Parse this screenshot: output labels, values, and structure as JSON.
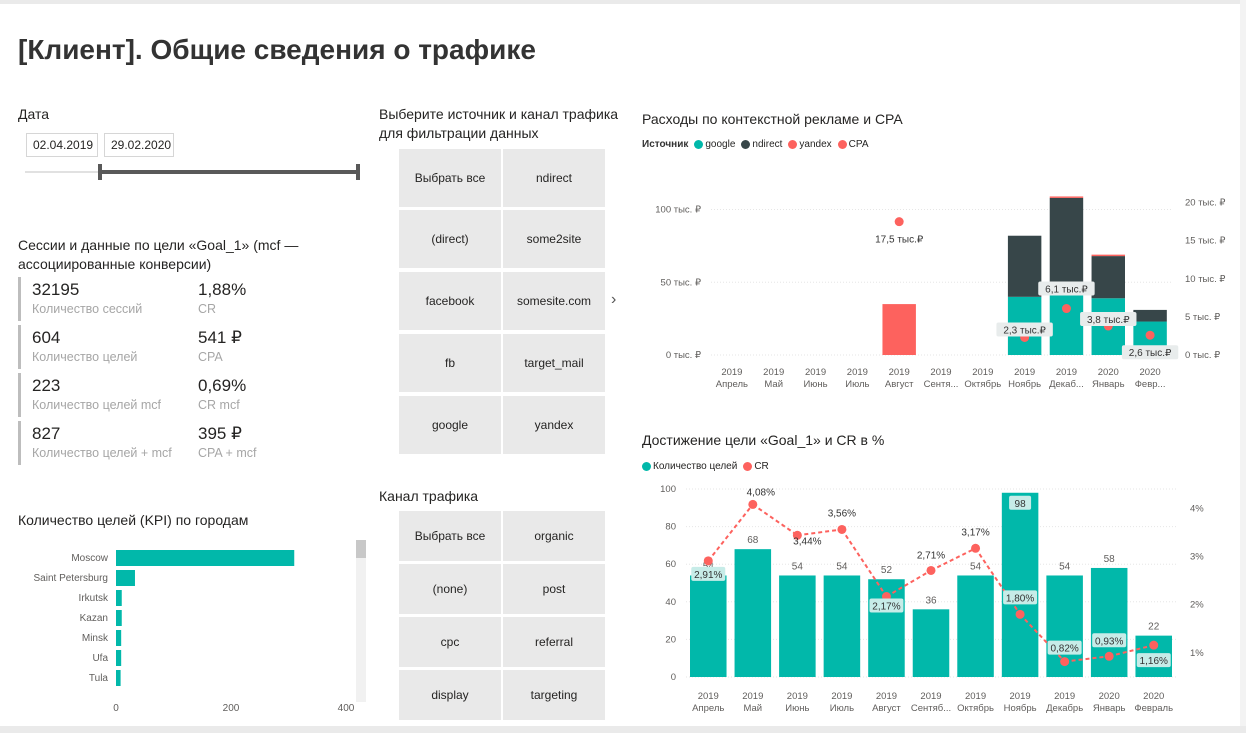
{
  "page": {
    "title": "[Клиент]. Общие сведения о трафике"
  },
  "date_filter": {
    "title": "Дата",
    "start": "02.04.2019",
    "end": "29.02.2020"
  },
  "kpi": {
    "title": "Сессии и данные по цели «Goal_1» (mcf — ассоциированные конверсии)",
    "items": [
      {
        "value": "32195",
        "label": "Количество сессий"
      },
      {
        "value": "1,88%",
        "label": "CR"
      },
      {
        "value": "604",
        "label": "Количество целей"
      },
      {
        "value": "541 ₽",
        "label": "CPA"
      },
      {
        "value": "223",
        "label": "Количество целей mcf"
      },
      {
        "value": "0,69%",
        "label": "CR mcf"
      },
      {
        "value": "827",
        "label": "Количество целей + mcf"
      },
      {
        "value": "395 ₽",
        "label": "CPA + mcf"
      }
    ]
  },
  "cities_chart": {
    "title": "Количество целей (KPI) по городам",
    "chart_data": {
      "type": "bar",
      "orientation": "horizontal",
      "categories": [
        "Moscow",
        "Saint Petersburg",
        "Irkutsk",
        "Kazan",
        "Minsk",
        "Ufa",
        "Tula"
      ],
      "values": [
        310,
        33,
        10,
        10,
        9,
        9,
        8
      ],
      "xlim": [
        0,
        400
      ],
      "xticks": [
        "0",
        "200",
        "400"
      ],
      "color": "#01b8aa"
    }
  },
  "source_slicer": {
    "title": "Выберите источник и канал трафика для фильтрации данных",
    "items": [
      "Выбрать все",
      "ndirect",
      "(direct)",
      "some2site",
      "facebook",
      "somesite.com",
      "fb",
      "target_mail",
      "google",
      "yandex"
    ],
    "arrow": "›"
  },
  "channel_slicer": {
    "title": "Канал трафика",
    "items": [
      "Выбрать все",
      "organic",
      "(none)",
      "post",
      "cpc",
      "referral",
      "display",
      "targeting"
    ]
  },
  "spend_chart": {
    "title": "Расходы по контекстной рекламе и CPA",
    "legend_title": "Источник",
    "chart_data": {
      "type": "bar",
      "stacked": true,
      "categories": [
        [
          "2019",
          "Апрель"
        ],
        [
          "2019",
          "Май"
        ],
        [
          "2019",
          "Июнь"
        ],
        [
          "2019",
          "Июль"
        ],
        [
          "2019",
          "Август"
        ],
        [
          "2019",
          "Сентя..."
        ],
        [
          "2019",
          "Октябрь"
        ],
        [
          "2019",
          "Ноябрь"
        ],
        [
          "2019",
          "Декаб..."
        ],
        [
          "2020",
          "Январь"
        ],
        [
          "2020",
          "Февр..."
        ]
      ],
      "series": [
        {
          "name": "google",
          "color": "#01b8aa",
          "values": [
            0,
            0,
            0,
            0,
            0,
            0,
            0,
            40000,
            44000,
            39000,
            23000
          ]
        },
        {
          "name": "ndirect",
          "color": "#374649",
          "values": [
            0,
            0,
            0,
            0,
            0,
            0,
            0,
            42000,
            64000,
            29000,
            8000
          ]
        },
        {
          "name": "yandex",
          "color": "#fd625e",
          "values": [
            0,
            0,
            0,
            0,
            35000,
            0,
            0,
            0,
            1000,
            1000,
            0
          ]
        }
      ],
      "line": {
        "name": "CPA",
        "color": "#fd625e",
        "values": [
          null,
          null,
          null,
          null,
          17500,
          null,
          null,
          2300,
          6100,
          3800,
          2600
        ],
        "labels": [
          "",
          "",
          "",
          "",
          "17,5 тыс.₽",
          "",
          "",
          "2,3 тыс.₽",
          "6,1 тыс.₽",
          "3,8 тыс.₽",
          "2,6 тыс.₽"
        ]
      },
      "ylim": [
        0,
        110000
      ],
      "yticks": [
        {
          "value": 0,
          "label": "0 тыс. ₽"
        },
        {
          "value": 50000,
          "label": "50 тыс. ₽"
        },
        {
          "value": 100000,
          "label": "100 тыс. ₽"
        }
      ],
      "y2lim": [
        0,
        21000
      ],
      "y2ticks": [
        {
          "value": 0,
          "label": "0 тыс. ₽"
        },
        {
          "value": 5000,
          "label": "5 тыс. ₽"
        },
        {
          "value": 10000,
          "label": "10 тыс. ₽"
        },
        {
          "value": 15000,
          "label": "15 тыс. ₽"
        },
        {
          "value": 20000,
          "label": "20 тыс. ₽"
        }
      ],
      "legend": "top-left"
    }
  },
  "goal_chart": {
    "title": "Достижение цели «Goal_1» и CR в %",
    "chart_data": {
      "type": "bar",
      "categories": [
        [
          "2019",
          "Апрель"
        ],
        [
          "2019",
          "Май"
        ],
        [
          "2019",
          "Июнь"
        ],
        [
          "2019",
          "Июль"
        ],
        [
          "2019",
          "Август"
        ],
        [
          "2019",
          "Сентяб..."
        ],
        [
          "2019",
          "Октябрь"
        ],
        [
          "2019",
          "Ноябрь"
        ],
        [
          "2019",
          "Декабрь"
        ],
        [
          "2020",
          "Январь"
        ],
        [
          "2020",
          "Февраль"
        ]
      ],
      "series": [
        {
          "name": "Количество целей",
          "color": "#01b8aa",
          "values": [
            54,
            68,
            54,
            54,
            52,
            36,
            54,
            98,
            54,
            58,
            22
          ]
        }
      ],
      "line": {
        "name": "CR",
        "color": "#fd625e",
        "values": [
          2.91,
          4.08,
          3.44,
          3.56,
          2.17,
          2.71,
          3.17,
          1.8,
          0.82,
          0.93,
          1.16
        ],
        "labels": [
          "2,91%",
          "4,08%",
          "3,44%",
          "3,56%",
          "2,17%",
          "2,71%",
          "3,17%",
          "1,80%",
          "0,82%",
          "0,93%",
          "1,16%"
        ]
      },
      "ylim": [
        0,
        100
      ],
      "yticks": [
        "0",
        "20",
        "40",
        "60",
        "80",
        "100"
      ],
      "y2lim": [
        0.5,
        4.4
      ],
      "y2ticks": [
        {
          "value": 1,
          "label": "1%"
        },
        {
          "value": 2,
          "label": "2%"
        },
        {
          "value": 3,
          "label": "3%"
        },
        {
          "value": 4,
          "label": "4%"
        }
      ],
      "legend": "top-left"
    }
  }
}
